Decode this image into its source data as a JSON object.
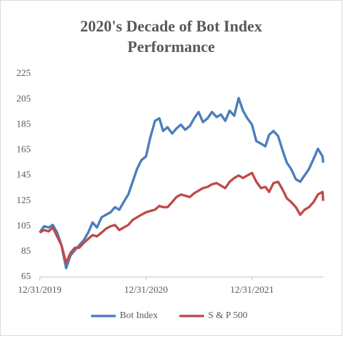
{
  "chart_data": {
    "type": "line",
    "title": "2020's Decade of Bot Index Performance",
    "x": [
      "12/31/2019",
      "01/15/2020",
      "01/31/2020",
      "02/14/2020",
      "02/29/2020",
      "03/15/2020",
      "03/31/2020",
      "04/15/2020",
      "04/30/2020",
      "05/15/2020",
      "05/31/2020",
      "06/15/2020",
      "06/30/2020",
      "07/15/2020",
      "07/31/2020",
      "08/15/2020",
      "08/31/2020",
      "09/15/2020",
      "09/30/2020",
      "10/15/2020",
      "10/31/2020",
      "11/15/2020",
      "11/30/2020",
      "12/15/2020",
      "12/31/2020",
      "01/15/2021",
      "01/31/2021",
      "02/15/2021",
      "02/28/2021",
      "03/15/2021",
      "03/31/2021",
      "04/15/2021",
      "04/30/2021",
      "05/15/2021",
      "05/31/2021",
      "06/15/2021",
      "06/30/2021",
      "07/15/2021",
      "07/31/2021",
      "08/15/2021",
      "08/31/2021",
      "09/15/2021",
      "09/30/2021",
      "10/15/2021",
      "10/31/2021",
      "11/15/2021",
      "11/30/2021",
      "12/15/2021",
      "12/31/2021",
      "01/15/2022",
      "01/31/2022",
      "02/15/2022",
      "02/28/2022",
      "03/15/2022",
      "03/31/2022",
      "04/15/2022",
      "04/30/2022",
      "05/15/2022",
      "05/31/2022",
      "06/15/2022",
      "06/30/2022",
      "07/15/2022",
      "07/31/2022",
      "08/15/2022",
      "08/31/2022",
      "09/02/2022"
    ],
    "series": [
      {
        "name": "Bot Index",
        "color": "#4a7ebb",
        "values": [
          100,
          105,
          104,
          106,
          100,
          90,
          72,
          82,
          86,
          90,
          94,
          100,
          108,
          104,
          112,
          114,
          116,
          120,
          118,
          124,
          130,
          140,
          150,
          157,
          160,
          175,
          188,
          190,
          180,
          183,
          178,
          182,
          185,
          181,
          184,
          190,
          195,
          187,
          190,
          195,
          191,
          193,
          188,
          196,
          192,
          206,
          196,
          190,
          185,
          172,
          170,
          168,
          177,
          180,
          176,
          165,
          155,
          150,
          142,
          140,
          145,
          150,
          158,
          166,
          160,
          155
        ]
      },
      {
        "name": "S & P 500",
        "color": "#be4b48",
        "values": [
          100,
          102,
          101,
          104,
          97,
          90,
          76,
          84,
          88,
          88,
          92,
          95,
          98,
          97,
          100,
          103,
          105,
          106,
          102,
          104,
          106,
          110,
          112,
          114,
          116,
          117,
          118,
          121,
          120,
          120,
          124,
          128,
          130,
          129,
          128,
          131,
          133,
          135,
          136,
          138,
          139,
          137,
          135,
          140,
          143,
          145,
          143,
          145,
          147,
          140,
          135,
          136,
          132,
          139,
          140,
          134,
          127,
          124,
          120,
          114,
          118,
          120,
          124,
          130,
          132,
          125
        ]
      }
    ],
    "xlim": [
      "12/31/2019",
      "09/02/2022"
    ],
    "xticks": [
      "12/31/2019",
      "12/31/2020",
      "12/31/2021"
    ],
    "ylim": [
      65,
      225
    ],
    "yticks": [
      65,
      85,
      105,
      125,
      145,
      165,
      185,
      205,
      225
    ],
    "grid": false,
    "legend": "bottom"
  }
}
